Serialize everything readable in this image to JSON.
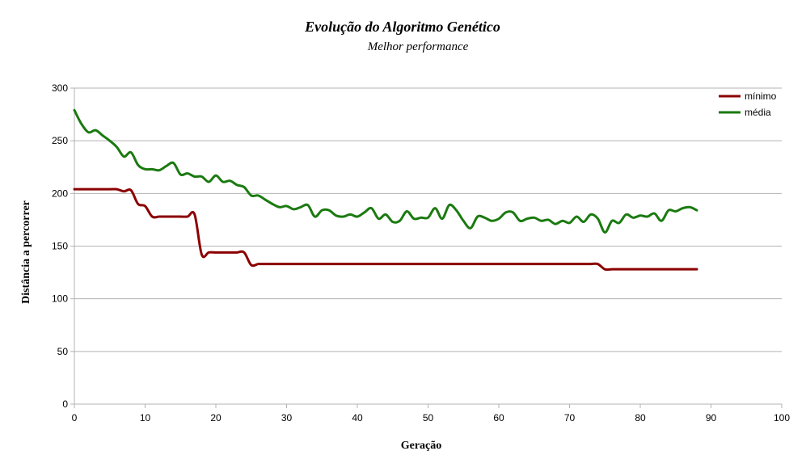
{
  "chart_data": {
    "type": "line",
    "title": "Evolução do Algoritmo Genético",
    "subtitle": "Melhor performance",
    "xlabel": "Geração",
    "ylabel": "Distância a percorrer",
    "xlim": [
      0,
      100
    ],
    "ylim": [
      0,
      300
    ],
    "xticks": [
      "0",
      "10",
      "20",
      "30",
      "40",
      "50",
      "60",
      "70",
      "80",
      "90",
      "100"
    ],
    "yticks": [
      "0",
      "50",
      "100",
      "150",
      "200",
      "250",
      "300"
    ],
    "grid": "horizontal",
    "legend_position": "top-right",
    "series": [
      {
        "name": "mínimo",
        "color": "#8b0000",
        "x": [
          0,
          1,
          2,
          3,
          4,
          5,
          6,
          7,
          8,
          9,
          10,
          11,
          12,
          13,
          14,
          15,
          16,
          17,
          18,
          19,
          20,
          21,
          22,
          23,
          24,
          25,
          26,
          27,
          28,
          30,
          35,
          40,
          45,
          50,
          55,
          60,
          65,
          70,
          72,
          73,
          74,
          75,
          76,
          77,
          80,
          85,
          88
        ],
        "y": [
          204,
          204,
          204,
          204,
          204,
          204,
          204,
          202,
          203,
          190,
          188,
          178,
          178,
          178,
          178,
          178,
          178,
          180,
          142,
          144,
          144,
          144,
          144,
          144,
          144,
          132,
          133,
          133,
          133,
          133,
          133,
          133,
          133,
          133,
          133,
          133,
          133,
          133,
          133,
          133,
          133,
          128,
          128,
          128,
          128,
          128,
          128
        ]
      },
      {
        "name": "média",
        "color": "#1a7a10",
        "x": [
          0,
          1,
          2,
          3,
          4,
          5,
          6,
          7,
          8,
          9,
          10,
          11,
          12,
          13,
          14,
          15,
          16,
          17,
          18,
          19,
          20,
          21,
          22,
          23,
          24,
          25,
          26,
          27,
          28,
          29,
          30,
          31,
          32,
          33,
          34,
          35,
          36,
          37,
          38,
          39,
          40,
          41,
          42,
          43,
          44,
          45,
          46,
          47,
          48,
          49,
          50,
          51,
          52,
          53,
          54,
          55,
          56,
          57,
          58,
          59,
          60,
          61,
          62,
          63,
          64,
          65,
          66,
          67,
          68,
          69,
          70,
          71,
          72,
          73,
          74,
          75,
          76,
          77,
          78,
          79,
          80,
          81,
          82,
          83,
          84,
          85,
          86,
          87,
          88
        ],
        "y": [
          279,
          266,
          258,
          260,
          255,
          250,
          244,
          235,
          239,
          227,
          223,
          223,
          222,
          226,
          229,
          218,
          219,
          216,
          216,
          211,
          217,
          211,
          212,
          208,
          206,
          198,
          198,
          194,
          190,
          187,
          188,
          185,
          187,
          189,
          178,
          184,
          184,
          179,
          178,
          180,
          178,
          182,
          186,
          176,
          180,
          173,
          174,
          183,
          176,
          177,
          177,
          186,
          176,
          189,
          184,
          174,
          167,
          178,
          177,
          174,
          176,
          182,
          182,
          174,
          176,
          177,
          174,
          175,
          171,
          174,
          172,
          178,
          173,
          180,
          176,
          163,
          174,
          172,
          180,
          177,
          179,
          178,
          181,
          174,
          184,
          183,
          186,
          187,
          184
        ]
      }
    ]
  }
}
